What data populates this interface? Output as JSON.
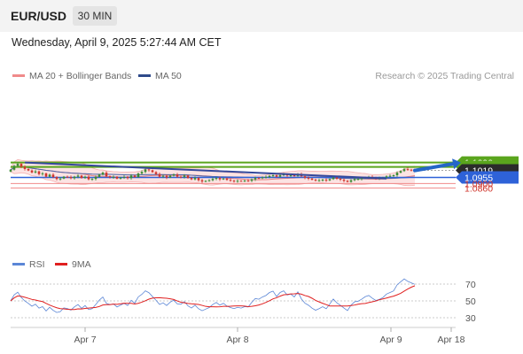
{
  "header": {
    "pair": "EUR/USD",
    "timeframe": "30 MIN"
  },
  "datetime": "Wednesday, April 9, 2025 5:27:44 AM CET",
  "legend": [
    {
      "label": "MA 20 + Bollinger Bands",
      "color": "#f08a8a"
    },
    {
      "label": "MA 50",
      "color": "#2f4a8a"
    }
  ],
  "credit": "Research © 2025 Trading Central",
  "rsi_legend": [
    {
      "label": "RSI",
      "color": "#5b86d6"
    },
    {
      "label": "9MA",
      "color": "#e02020"
    }
  ],
  "colors": {
    "up": "#3a8a34",
    "down": "#d0362c",
    "resistance": "#5aa51d",
    "support_blue": "#2e62d8",
    "support_red": "#f08a8a",
    "trend": "#34489a",
    "current": "#2b2b2b",
    "band_fill": "#fbdede"
  },
  "chart_data": [
    {
      "type": "candlestick",
      "instrument": "EUR/USD",
      "interval": "30 MIN",
      "x_ticks": [
        "Apr 7",
        "Apr 8",
        "Apr 9",
        "Apr 18"
      ],
      "ylim": [
        1.085,
        1.1105
      ],
      "levels": [
        {
          "value": 1.109,
          "label": "1.1090",
          "kind": "resistance"
        },
        {
          "value": 1.105,
          "label": "1.1050",
          "kind": "resistance"
        },
        {
          "value": 1.1019,
          "label": "1.1019",
          "kind": "current"
        },
        {
          "value": 1.0955,
          "label": "1.0955",
          "kind": "support"
        },
        {
          "value": 1.09,
          "label": "1.0900",
          "kind": "support"
        },
        {
          "value": 1.086,
          "label": "1.0860",
          "kind": "support"
        }
      ],
      "trendline": {
        "from": {
          "bar": 4,
          "price": 1.109
        },
        "to": {
          "bar": 106,
          "price": 1.0945
        }
      },
      "forecast_arrow": {
        "from": {
          "bar": 114,
          "price": 1.1018
        },
        "to": {
          "bar": 127,
          "price": 1.109
        }
      },
      "series": [
        {
          "name": "MA 20 + Bollinger Bands",
          "kind": "bollinger"
        },
        {
          "name": "MA 50",
          "kind": "ma"
        }
      ],
      "close": [
        1.1025,
        1.106,
        1.1078,
        1.1052,
        1.1032,
        1.1018,
        1.1,
        1.101,
        1.0985,
        1.0992,
        1.0962,
        1.098,
        1.0958,
        1.0941,
        1.0945,
        1.0962,
        1.0958,
        1.0948,
        1.0962,
        1.0972,
        1.095,
        1.0962,
        1.0938,
        1.0942,
        1.096,
        1.0981,
        1.0998,
        1.0965,
        1.0958,
        1.0961,
        1.0944,
        1.0952,
        1.096,
        1.0949,
        1.0972,
        1.0958,
        1.099,
        1.1005,
        1.1028,
        1.102,
        1.1003,
        1.0985,
        1.0962,
        1.097,
        1.0955,
        1.0971,
        1.0981,
        1.0962,
        1.096,
        1.0972,
        1.095,
        1.0938,
        1.095,
        1.093,
        1.0918,
        1.0924,
        1.093,
        1.0942,
        1.095,
        1.0938,
        1.0945,
        1.0933,
        1.0926,
        1.0921,
        1.0925,
        1.0922,
        1.0926,
        1.0925,
        1.0938,
        1.095,
        1.0948,
        1.0955,
        1.096,
        1.097,
        1.0975,
        1.0962,
        1.0976,
        1.0982,
        1.0972,
        1.0975,
        1.0968,
        1.0985,
        1.0966,
        1.0952,
        1.0945,
        1.0934,
        1.0926,
        1.093,
        1.0935,
        1.0928,
        1.094,
        1.0955,
        1.0943,
        1.0935,
        1.0925,
        1.0915,
        1.093,
        1.094,
        1.0942,
        1.0948,
        1.0956,
        1.096,
        1.0953,
        1.0947,
        1.095,
        1.0955,
        1.0965,
        1.097,
        1.0975,
        1.0998,
        1.1013,
        1.103,
        1.1025,
        1.1022,
        1.1019
      ],
      "rsi": {
        "ylim": [
          20,
          80
        ],
        "ticks": [
          70,
          50,
          30
        ]
      }
    }
  ]
}
